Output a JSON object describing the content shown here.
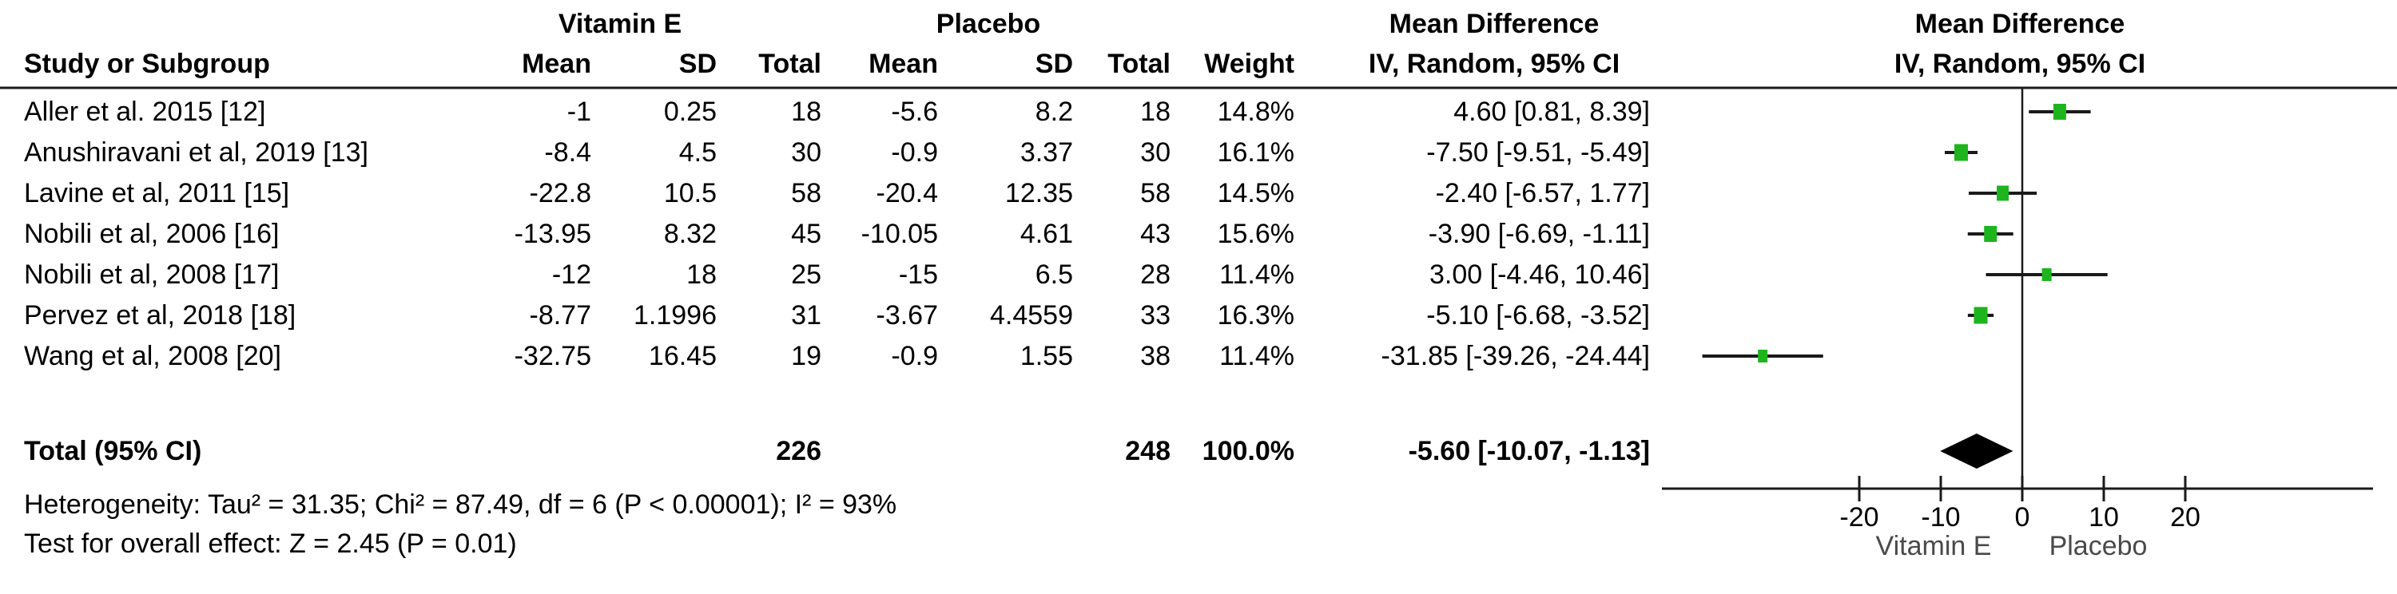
{
  "chart_data": {
    "type": "forest",
    "effect_measure": "Mean Difference",
    "method": "IV, Random, 95% CI",
    "header": {
      "study_col": "Study or Subgroup",
      "group1": "Vitamin E",
      "group2": "Placebo",
      "sub_cols": [
        "Mean",
        "SD",
        "Total",
        "Mean",
        "SD",
        "Total",
        "Weight"
      ],
      "md_title": "Mean Difference",
      "md_sub": "IV, Random, 95% CI",
      "plot_title": "Mean Difference",
      "plot_sub": "IV, Random, 95% CI"
    },
    "studies": [
      {
        "label": "Aller et al. 2015 [12]",
        "e_mean": "-1",
        "e_sd": "0.25",
        "e_total": "18",
        "p_mean": "-5.6",
        "p_sd": "8.2",
        "p_total": "18",
        "weight": "14.8%",
        "ci_text": "4.60 [0.81, 8.39]",
        "md": 4.6,
        "lo": 0.81,
        "hi": 8.39,
        "weight_val": 14.8
      },
      {
        "label": "Anushiravani et al, 2019 [13]",
        "e_mean": "-8.4",
        "e_sd": "4.5",
        "e_total": "30",
        "p_mean": "-0.9",
        "p_sd": "3.37",
        "p_total": "30",
        "weight": "16.1%",
        "ci_text": "-7.50 [-9.51, -5.49]",
        "md": -7.5,
        "lo": -9.51,
        "hi": -5.49,
        "weight_val": 16.1
      },
      {
        "label": "Lavine et al, 2011 [15]",
        "e_mean": "-22.8",
        "e_sd": "10.5",
        "e_total": "58",
        "p_mean": "-20.4",
        "p_sd": "12.35",
        "p_total": "58",
        "weight": "14.5%",
        "ci_text": "-2.40 [-6.57, 1.77]",
        "md": -2.4,
        "lo": -6.57,
        "hi": 1.77,
        "weight_val": 14.5
      },
      {
        "label": "Nobili et al, 2006 [16]",
        "e_mean": "-13.95",
        "e_sd": "8.32",
        "e_total": "45",
        "p_mean": "-10.05",
        "p_sd": "4.61",
        "p_total": "43",
        "weight": "15.6%",
        "ci_text": "-3.90 [-6.69, -1.11]",
        "md": -3.9,
        "lo": -6.69,
        "hi": -1.11,
        "weight_val": 15.6
      },
      {
        "label": "Nobili et al, 2008 [17]",
        "e_mean": "-12",
        "e_sd": "18",
        "e_total": "25",
        "p_mean": "-15",
        "p_sd": "6.5",
        "p_total": "28",
        "weight": "11.4%",
        "ci_text": "3.00 [-4.46, 10.46]",
        "md": 3.0,
        "lo": -4.46,
        "hi": 10.46,
        "weight_val": 11.4
      },
      {
        "label": "Pervez et al, 2018 [18]",
        "e_mean": "-8.77",
        "e_sd": "1.1996",
        "e_total": "31",
        "p_mean": "-3.67",
        "p_sd": "4.4559",
        "p_total": "33",
        "weight": "16.3%",
        "ci_text": "-5.10 [-6.68, -3.52]",
        "md": -5.1,
        "lo": -6.68,
        "hi": -3.52,
        "weight_val": 16.3
      },
      {
        "label": "Wang et al, 2008 [20]",
        "e_mean": "-32.75",
        "e_sd": "16.45",
        "e_total": "19",
        "p_mean": "-0.9",
        "p_sd": "1.55",
        "p_total": "38",
        "weight": "11.4%",
        "ci_text": "-31.85 [-39.26, -24.44]",
        "md": -31.85,
        "lo": -39.26,
        "hi": -24.44,
        "weight_val": 11.4
      }
    ],
    "total": {
      "label": "Total (95% CI)",
      "e_total": "226",
      "p_total": "248",
      "weight": "100.0%",
      "ci_text": "-5.60 [-10.07, -1.13]",
      "md": -5.6,
      "lo": -10.07,
      "hi": -1.13
    },
    "heterogeneity": "Heterogeneity: Tau² = 31.35; Chi² = 87.49, df = 6 (P < 0.00001); I² = 93%",
    "overall_effect": "Test for overall effect: Z = 2.45 (P = 0.01)",
    "axis": {
      "ticks": [
        -20,
        -10,
        0,
        10,
        20
      ],
      "tick_labels": [
        "-20",
        "-10",
        "0",
        "10",
        "20"
      ],
      "left_label": "Vitamin E",
      "right_label": "Placebo",
      "xlim": [
        -44,
        43
      ]
    },
    "colors": {
      "square": "#1eb41e",
      "diamond": "#000000",
      "line": "#1a1a1a"
    }
  }
}
